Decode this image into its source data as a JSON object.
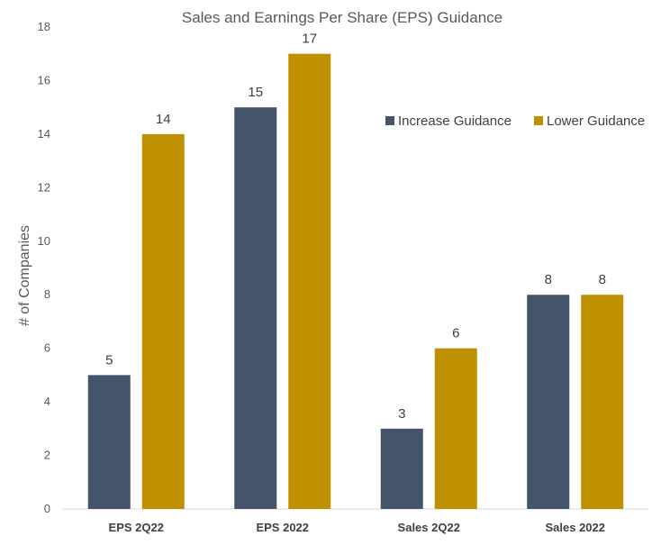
{
  "chart_data": {
    "type": "bar",
    "title": "Sales and Earnings Per Share (EPS) Guidance",
    "xlabel": "",
    "ylabel": "# of Companies",
    "ylim": [
      0,
      18
    ],
    "yticks": [
      0,
      2,
      4,
      6,
      8,
      10,
      12,
      14,
      16,
      18
    ],
    "categories": [
      "EPS 2Q22",
      "EPS 2022",
      "Sales 2Q22",
      "Sales 2022"
    ],
    "series": [
      {
        "name": "Increase Guidance",
        "color": "#44546a",
        "values": [
          5,
          15,
          3,
          8
        ]
      },
      {
        "name": "Lower Guidance",
        "color": "#bf9000",
        "values": [
          14,
          17,
          6,
          8
        ]
      }
    ],
    "grid": false,
    "legend": "top-right",
    "data_labels": true
  }
}
